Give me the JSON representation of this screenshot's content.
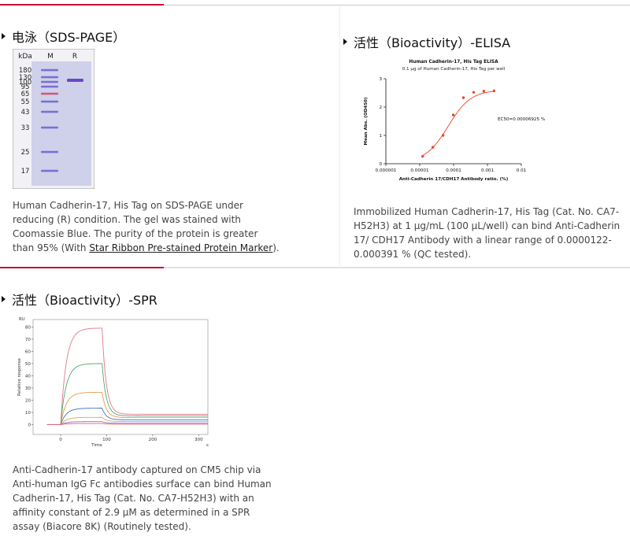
{
  "sds": {
    "title": "电泳（SDS-PAGE）",
    "gel": {
      "kda_label": "kDa",
      "lane_m": "M",
      "lane_r": "R",
      "markers": [
        "180",
        "130",
        "100",
        "95",
        "65",
        "55",
        "43",
        "33",
        "25",
        "17"
      ]
    },
    "desc_text": "Human Cadherin-17, His Tag on SDS-PAGE under reducing (R) condition. The gel was stained with Coomassie Blue. The purity of the protein is greater than 95% (With ",
    "desc_link": "Star Ribbon Pre-stained Protein Marker",
    "desc_end": ")."
  },
  "elisa": {
    "title": "活性（Bioactivity）-ELISA",
    "desc": "Immobilized Human Cadherin-17, His Tag (Cat. No. CA7-H52H3) at 1 µg/mL (100 µL/well) can bind Anti-Cadherin 17/ CDH17 Antibody with a linear range of 0.0000122-0.000391 % (QC tested)."
  },
  "spr": {
    "title": "活性（Bioactivity）-SPR",
    "desc": "Anti-Cadherin-17 antibody captured on CM5 chip via Anti-human IgG Fc antibodies surface can bind Human Cadherin-17, His Tag (Cat. No. CA7-H52H3) with an affinity constant of 2.9 µM as determined in a SPR assay (Biacore 8K) (Routinely tested)."
  },
  "chart_data": [
    {
      "type": "scatter",
      "title": "Human Cadherin-17, His Tag ELISA",
      "subtitle": "0.1 µg of Human Cadherin-17, His Tag per well",
      "xlabel": "Anti-Cadherin 17/CDH17 Antibody ratio. (%)",
      "ylabel": "Mean Abs. (OD450)",
      "x_scale": "log",
      "xlim": [
        1e-06,
        0.01
      ],
      "ylim": [
        0,
        3
      ],
      "x_ticks": [
        "0.000001",
        "0.00001",
        "0.0001",
        "0.001",
        "0.01"
      ],
      "y_ticks": [
        "0",
        "1",
        "2",
        "3"
      ],
      "annotation": "EC50=0.00006925 %",
      "color": "#e8452c",
      "x": [
        1.22e-05,
        2.44e-05,
        4.88e-05,
        9.77e-05,
        0.000195,
        0.000391,
        0.00078,
        0.00156
      ],
      "y": [
        0.26,
        0.58,
        1.0,
        1.72,
        2.33,
        2.52,
        2.56,
        2.57
      ]
    },
    {
      "type": "line",
      "title": "",
      "xlabel": "Time",
      "ylabel": "Relative response",
      "y_unit": "RU",
      "x_unit": "s",
      "xlim": [
        -60,
        320
      ],
      "ylim": [
        -8,
        86
      ],
      "x_ticks": [
        "0",
        "100",
        "200",
        "300"
      ],
      "y_ticks": [
        "0",
        "10",
        "20",
        "30",
        "40",
        "50",
        "60",
        "70",
        "80"
      ],
      "series": [
        {
          "color": "#e07a8a",
          "plateau": 79,
          "end": 8.5
        },
        {
          "color": "#4fa66a",
          "plateau": 50,
          "end": 7.2
        },
        {
          "color": "#e39b4a",
          "plateau": 26.5,
          "end": 5.8
        },
        {
          "color": "#3e6fc4",
          "plateau": 13.5,
          "end": 4.0
        },
        {
          "color": "#e0a256",
          "plateau": 6.0,
          "end": 2.6
        },
        {
          "color": "#9b6ac4",
          "plateau": 2.5,
          "end": 1.2
        },
        {
          "color": "#e06070",
          "plateau": 1.0,
          "end": 0.4
        }
      ]
    }
  ]
}
